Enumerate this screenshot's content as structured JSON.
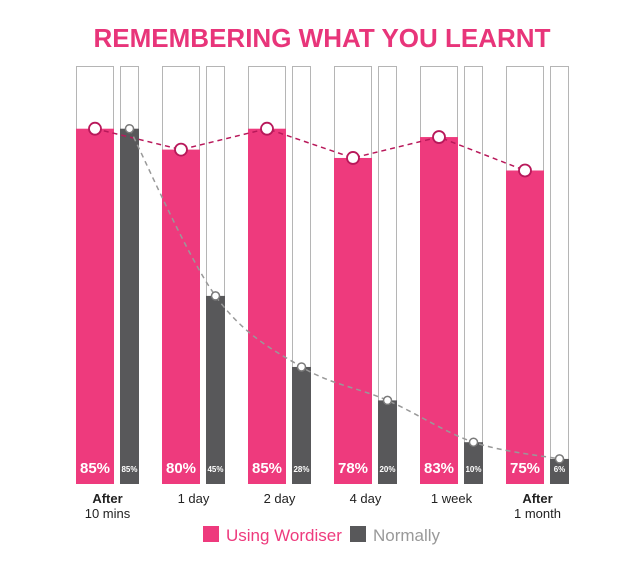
{
  "chart_data": {
    "type": "bar",
    "title": "REMEMBERING WHAT YOU LEARNT",
    "categories": [
      {
        "line1": "After",
        "line2": "10 mins",
        "bold_first": true
      },
      {
        "line1": "1 day",
        "line2": "",
        "bold_first": false
      },
      {
        "line1": "2 day",
        "line2": "",
        "bold_first": false
      },
      {
        "line1": "4 day",
        "line2": "",
        "bold_first": false
      },
      {
        "line1": "1 week",
        "line2": "",
        "bold_first": false
      },
      {
        "line1": "After",
        "line2": "1 month",
        "bold_first": true
      }
    ],
    "series": [
      {
        "name": "Using Wordiser",
        "color": "#ee3a7d",
        "values": [
          85,
          80,
          85,
          78,
          83,
          75
        ],
        "labels": [
          "85%",
          "80%",
          "85%",
          "78%",
          "83%",
          "75%"
        ]
      },
      {
        "name": "Normally",
        "color": "#58585a",
        "values": [
          85,
          45,
          28,
          20,
          10,
          6
        ],
        "labels": [
          "85%",
          "45%",
          "28%",
          "20%",
          "10%",
          "6%"
        ]
      }
    ],
    "line_colors": {
      "Using Wordiser": "#b8185a",
      "Normally": "#999999"
    },
    "ylim": [
      0,
      100
    ],
    "legend_position": "bottom-center",
    "legend_text_colors": {
      "Using Wordiser": "#ee3a7d",
      "Normally": "#999999"
    }
  }
}
